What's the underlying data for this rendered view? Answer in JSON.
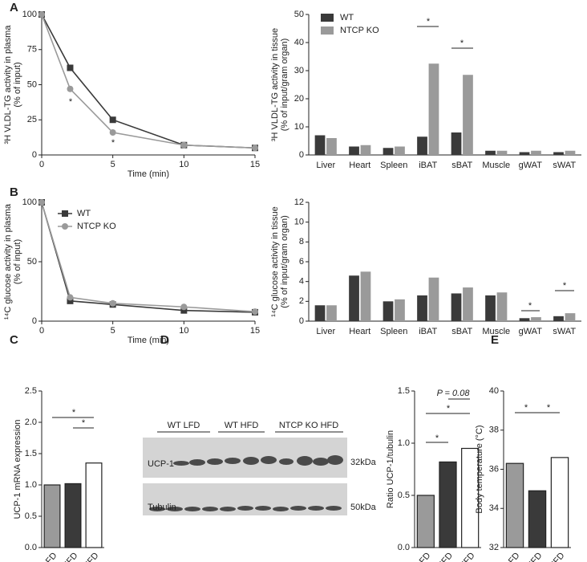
{
  "panels": [
    "A",
    "B",
    "C",
    "D",
    "E"
  ],
  "blot": {
    "groups": [
      "WT LFD",
      "WT HFD",
      "NTCP KO HFD"
    ],
    "rows": [
      "UCP-1",
      "Tubulin"
    ],
    "sizes": [
      "32kDa",
      "50kDa"
    ]
  },
  "chart_data": [
    {
      "type": "line",
      "ylabel": [
        "³H VLDL-TG activity in plasma",
        "(% of input)"
      ],
      "xlabel": "Time (min)",
      "x": [
        0,
        2,
        5,
        10,
        15
      ],
      "xlim": [
        0,
        15
      ],
      "xticks": [
        0,
        5,
        10,
        15
      ],
      "ylim": [
        0,
        100
      ],
      "yticks": [
        0,
        25,
        50,
        75,
        100
      ],
      "series": [
        {
          "name": "WT",
          "color": "#3a3a3a",
          "values": [
            100,
            62,
            25,
            7,
            5
          ]
        },
        {
          "name": "NTCP KO",
          "color": "#9a9a9a",
          "values": [
            100,
            47,
            16,
            7,
            5
          ]
        }
      ],
      "annotations": [
        "*",
        "*"
      ]
    },
    {
      "type": "bar",
      "ylabel": [
        "³H VLDL-TG activity in tissue",
        "(% of input/gram organ)"
      ],
      "categories": [
        "Liver",
        "Heart",
        "Spleen",
        "iBAT",
        "sBAT",
        "Muscle",
        "gWAT",
        "sWAT"
      ],
      "ylim": [
        0,
        50
      ],
      "yticks": [
        0,
        10,
        20,
        30,
        40,
        50
      ],
      "legend": "upper left",
      "series": [
        {
          "name": "WT",
          "color": "#3a3a3a",
          "values": [
            7,
            3,
            2.5,
            6.5,
            8,
            1.5,
            1,
            1
          ]
        },
        {
          "name": "NTCP KO",
          "color": "#9a9a9a",
          "values": [
            6,
            3.5,
            3,
            32.5,
            28.5,
            1.5,
            1.5,
            1.5
          ]
        }
      ],
      "annotations": [
        "*",
        "*"
      ]
    },
    {
      "type": "line",
      "ylabel": [
        "¹⁴C glucose activity in plasma",
        "(% of input)"
      ],
      "xlabel": "Time (min)",
      "x": [
        0,
        2,
        5,
        10,
        15
      ],
      "xlim": [
        0,
        15
      ],
      "xticks": [
        0,
        5,
        10,
        15
      ],
      "ylim": [
        0,
        100
      ],
      "yticks": [
        0,
        50,
        100
      ],
      "legend": "upper left",
      "series": [
        {
          "name": "WT",
          "color": "#3a3a3a",
          "values": [
            100,
            17,
            14,
            9,
            7.5
          ]
        },
        {
          "name": "NTCP KO",
          "color": "#9a9a9a",
          "values": [
            100,
            20,
            15,
            12,
            8
          ]
        }
      ]
    },
    {
      "type": "bar",
      "ylabel": [
        "¹⁴C glucose activity in tissue",
        "(% of input/gram organ)"
      ],
      "categories": [
        "Liver",
        "Heart",
        "Spleen",
        "iBAT",
        "sBAT",
        "Muscle",
        "gWAT",
        "sWAT"
      ],
      "ylim": [
        0,
        12
      ],
      "yticks": [
        0,
        2,
        4,
        6,
        8,
        10,
        12
      ],
      "series": [
        {
          "name": "WT",
          "color": "#3a3a3a",
          "values": [
            1.6,
            4.6,
            2.0,
            2.6,
            2.8,
            2.6,
            0.3,
            0.5
          ]
        },
        {
          "name": "NTCP KO",
          "color": "#9a9a9a",
          "values": [
            1.6,
            5.0,
            2.2,
            4.4,
            3.4,
            2.9,
            0.4,
            0.8
          ]
        }
      ],
      "annotations": [
        "*",
        "*"
      ]
    },
    {
      "type": "bar",
      "ylabel": [
        "UCP-1 mRNA expression"
      ],
      "categories": [
        "WT LFD",
        "WT HFD",
        "KO HFD"
      ],
      "values": [
        1.0,
        1.02,
        1.35
      ],
      "colors": [
        "#9a9a9a",
        "#3a3a3a",
        "#ffffff"
      ],
      "ylim": [
        0,
        2.5
      ],
      "yticks": [
        {
          "value": 0,
          "label": "0.0"
        },
        0.5,
        {
          "value": 1,
          "label": "1.0"
        },
        1.5,
        {
          "value": 2,
          "label": "2.0"
        },
        2.5
      ],
      "annotations": [
        "*",
        "*"
      ]
    },
    {
      "type": "bar",
      "ylabel": [
        "Ratio UCP-1/tubulin"
      ],
      "categories": [
        "WT LFD",
        "WT HFD",
        "KO HFD"
      ],
      "values": [
        0.5,
        0.82,
        0.95
      ],
      "colors": [
        "#9a9a9a",
        "#3a3a3a",
        "#ffffff"
      ],
      "ylim": [
        0,
        1.5
      ],
      "yticks": [
        {
          "value": 0,
          "label": "0.0"
        },
        0.5,
        {
          "value": 1,
          "label": "1.0"
        },
        1.5
      ],
      "annotations": [
        "P = 0.08",
        "*",
        "*"
      ]
    },
    {
      "type": "bar",
      "ylabel": [
        "Body temperature (°C)"
      ],
      "categories": [
        "WT LFD",
        "WT HFD",
        "KO HFD"
      ],
      "values": [
        36.3,
        34.9,
        36.6
      ],
      "colors": [
        "#9a9a9a",
        "#3a3a3a",
        "#ffffff"
      ],
      "ylim": [
        32,
        40
      ],
      "yticks": [
        32,
        34,
        36,
        38,
        40
      ],
      "annotations": [
        "*",
        "*"
      ]
    }
  ]
}
